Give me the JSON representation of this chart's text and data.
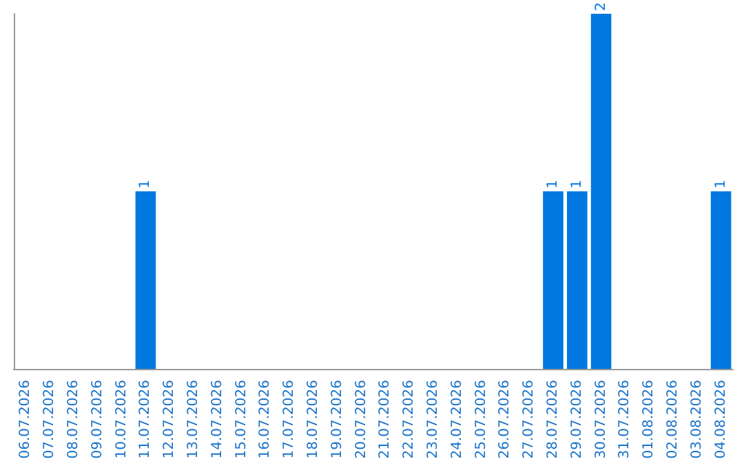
{
  "chart_data": {
    "type": "bar",
    "categories": [
      "06.07.2026",
      "07.07.2026",
      "08.07.2026",
      "09.07.2026",
      "10.07.2026",
      "11.07.2026",
      "12.07.2026",
      "13.07.2026",
      "14.07.2026",
      "15.07.2026",
      "16.07.2026",
      "17.07.2026",
      "18.07.2026",
      "19.07.2026",
      "20.07.2026",
      "21.07.2026",
      "22.07.2026",
      "23.07.2026",
      "24.07.2026",
      "25.07.2026",
      "26.07.2026",
      "27.07.2026",
      "28.07.2026",
      "29.07.2026",
      "30.07.2026",
      "31.07.2026",
      "01.08.2026",
      "02.08.2026",
      "03.08.2026",
      "04.08.2026"
    ],
    "values": [
      0,
      0,
      0,
      0,
      0,
      1,
      0,
      0,
      0,
      0,
      0,
      0,
      0,
      0,
      0,
      0,
      0,
      0,
      0,
      0,
      0,
      0,
      1,
      1,
      2,
      0,
      0,
      0,
      0,
      1
    ],
    "value_labels": [
      null,
      null,
      null,
      null,
      null,
      "1",
      null,
      null,
      null,
      null,
      null,
      null,
      null,
      null,
      null,
      null,
      null,
      null,
      null,
      null,
      null,
      null,
      "1",
      "1",
      "2",
      null,
      null,
      null,
      null,
      "1"
    ],
    "color": "#0078e0",
    "tick_labels": "x"
  }
}
